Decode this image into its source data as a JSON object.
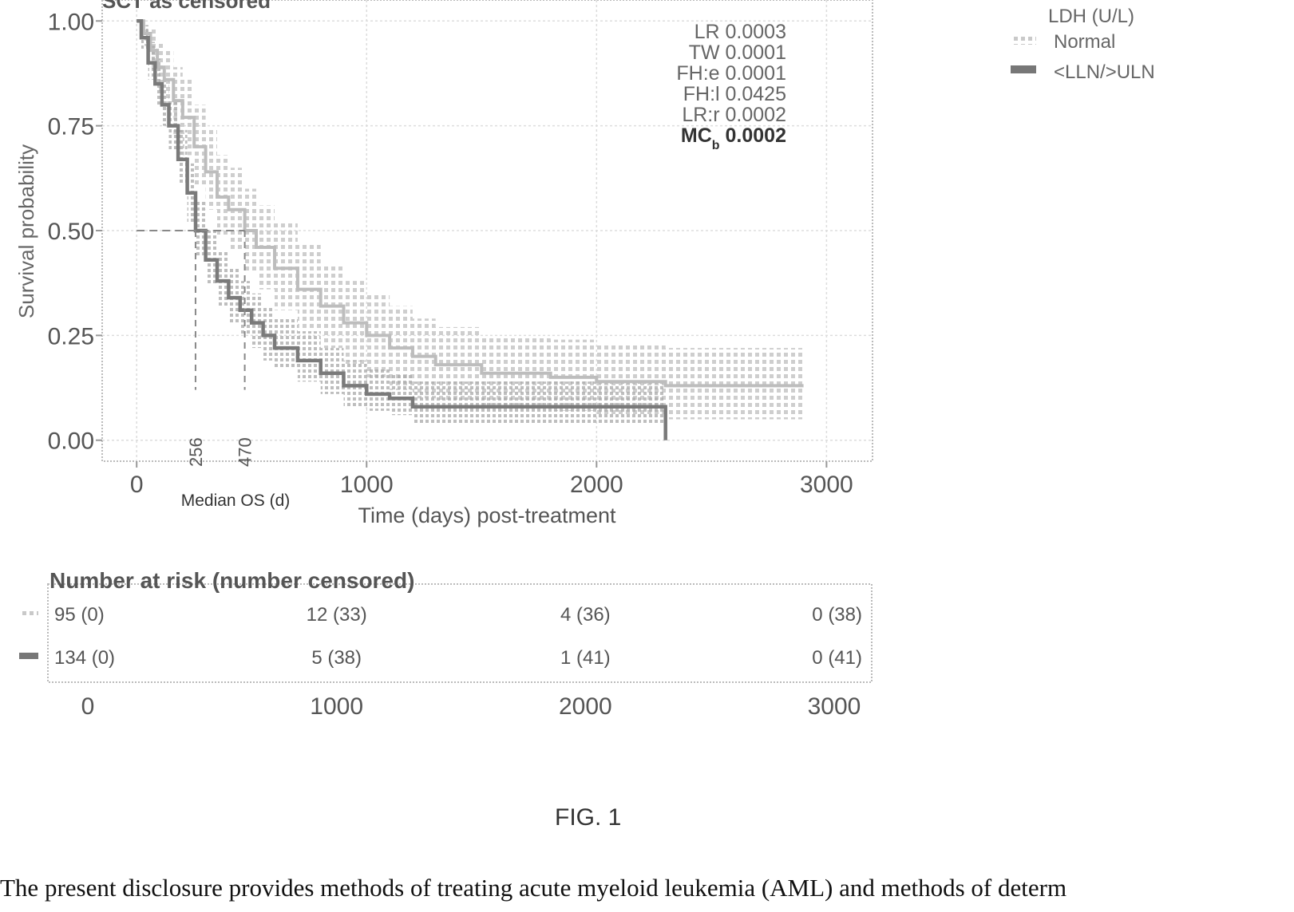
{
  "chart_data": {
    "type": "line",
    "subtype": "kaplan-meier",
    "title": "SCT as censored",
    "xlabel": "Time (days) post-treatment",
    "ylabel": "Survival probability",
    "xlim": [
      -150,
      3200
    ],
    "ylim": [
      -0.05,
      1.05
    ],
    "xticks": [
      0,
      1000,
      2000,
      3000
    ],
    "yticks": [
      0.0,
      0.25,
      0.5,
      0.75,
      1.0
    ],
    "ytick_labels": [
      "0.00",
      "0.25",
      "0.50",
      "0.75",
      "1.00"
    ],
    "grid": true,
    "legend": {
      "title": "LDH (U/L)",
      "position": "outside-top-right",
      "entries": [
        "Normal",
        "<LLN/>ULN"
      ]
    },
    "stats": [
      {
        "label": "LR",
        "value": "0.0003"
      },
      {
        "label": "TW",
        "value": "0.0001"
      },
      {
        "label": "FH:e",
        "value": "0.0001"
      },
      {
        "label": "FH:l",
        "value": "0.0425"
      },
      {
        "label": "LR:r",
        "value": "0.0002"
      },
      {
        "label": "MC",
        "sub": "b",
        "value": "0.0002"
      }
    ],
    "median_label": "Median OS (d)",
    "medians": [
      {
        "series": "<LLN/>ULN",
        "x": 256,
        "label": "256"
      },
      {
        "series": "Normal",
        "x": 470,
        "label": "470"
      }
    ],
    "series": [
      {
        "name": "Normal",
        "color": "#bdbdbd",
        "x": [
          0,
          30,
          60,
          90,
          120,
          160,
          200,
          250,
          300,
          350,
          400,
          470,
          520,
          600,
          700,
          800,
          900,
          1000,
          1100,
          1200,
          1300,
          1500,
          1800,
          2000,
          2300,
          2600,
          2900
        ],
        "y": [
          1.0,
          0.97,
          0.93,
          0.89,
          0.86,
          0.81,
          0.77,
          0.7,
          0.64,
          0.58,
          0.55,
          0.5,
          0.46,
          0.41,
          0.36,
          0.32,
          0.28,
          0.25,
          0.22,
          0.2,
          0.18,
          0.16,
          0.15,
          0.14,
          0.13,
          0.13,
          0.13
        ],
        "ci_lower": [
          1.0,
          0.94,
          0.88,
          0.83,
          0.79,
          0.73,
          0.68,
          0.61,
          0.55,
          0.49,
          0.45,
          0.4,
          0.36,
          0.31,
          0.26,
          0.22,
          0.18,
          0.15,
          0.12,
          0.1,
          0.09,
          0.08,
          0.07,
          0.06,
          0.05,
          0.05,
          0.05
        ],
        "ci_upper": [
          1.0,
          0.99,
          0.98,
          0.95,
          0.93,
          0.89,
          0.86,
          0.8,
          0.74,
          0.68,
          0.65,
          0.6,
          0.56,
          0.52,
          0.47,
          0.42,
          0.38,
          0.35,
          0.32,
          0.29,
          0.27,
          0.25,
          0.24,
          0.23,
          0.22,
          0.22,
          0.22
        ]
      },
      {
        "name": "<LLN/>ULN",
        "color": "#7a7a7a",
        "x": [
          0,
          20,
          50,
          80,
          110,
          140,
          180,
          220,
          256,
          300,
          350,
          400,
          450,
          500,
          550,
          600,
          700,
          800,
          900,
          1000,
          1100,
          1200,
          1300,
          1500,
          1800,
          2000,
          2200,
          2300
        ],
        "y": [
          1.0,
          0.96,
          0.9,
          0.85,
          0.8,
          0.75,
          0.67,
          0.59,
          0.5,
          0.43,
          0.38,
          0.34,
          0.31,
          0.28,
          0.25,
          0.22,
          0.19,
          0.16,
          0.13,
          0.11,
          0.1,
          0.08,
          0.08,
          0.08,
          0.08,
          0.08,
          0.08,
          0.0
        ],
        "ci_lower": [
          1.0,
          0.93,
          0.86,
          0.8,
          0.75,
          0.69,
          0.61,
          0.52,
          0.44,
          0.37,
          0.32,
          0.28,
          0.25,
          0.22,
          0.19,
          0.17,
          0.14,
          0.11,
          0.08,
          0.07,
          0.06,
          0.04,
          0.04,
          0.04,
          0.04,
          0.04,
          0.04,
          0.0
        ],
        "ci_upper": [
          1.0,
          0.99,
          0.95,
          0.91,
          0.86,
          0.81,
          0.74,
          0.66,
          0.57,
          0.5,
          0.45,
          0.41,
          0.38,
          0.35,
          0.32,
          0.29,
          0.26,
          0.22,
          0.19,
          0.17,
          0.16,
          0.14,
          0.14,
          0.14,
          0.14,
          0.14,
          0.14,
          0.0
        ]
      }
    ],
    "risk_table": {
      "title": "Number at risk (number censored)",
      "times": [
        0,
        1000,
        2000,
        3000
      ],
      "rows": [
        {
          "series": "Normal",
          "cells": [
            "95 (0)",
            "12 (33)",
            "4 (36)",
            "0 (38)"
          ]
        },
        {
          "series": "<LLN/>ULN",
          "cells": [
            "134 (0)",
            "5 (38)",
            "1 (41)",
            "0 (41)"
          ]
        }
      ]
    }
  },
  "figure_caption": "FIG. 1",
  "body_text": "The present disclosure provides methods of treating acute myeloid leukemia (AML) and methods of determ"
}
